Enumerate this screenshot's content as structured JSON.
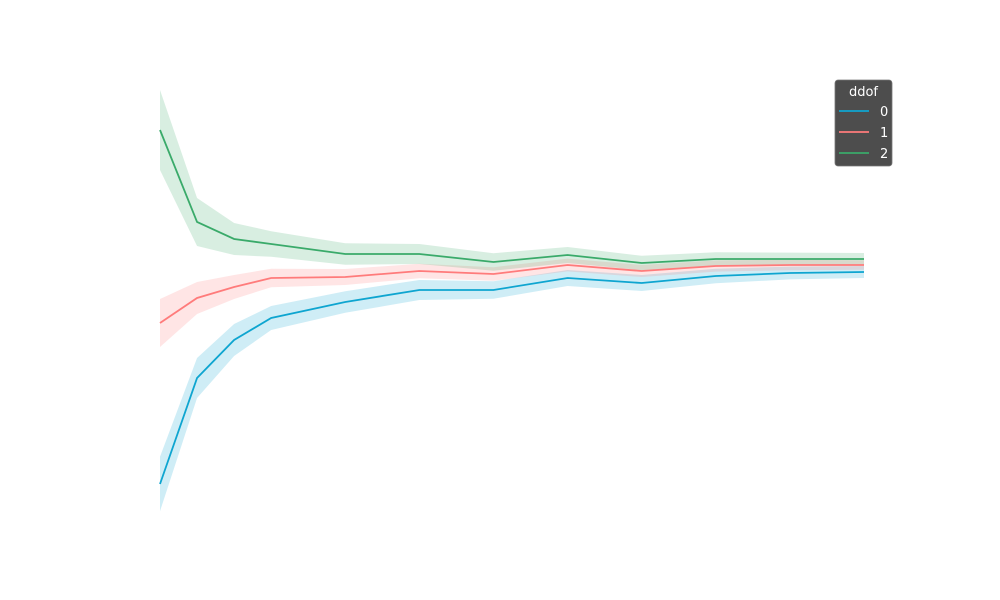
{
  "chart_data": {
    "type": "line",
    "title": "",
    "xlabel": "",
    "ylabel": "",
    "axes_visible": false,
    "grid": false,
    "x": [
      2,
      3,
      4,
      5,
      7,
      9,
      11,
      13,
      15,
      17,
      19,
      21
    ],
    "xlim": [
      2,
      21
    ],
    "ylim": [
      0.3125,
      1.5125
    ],
    "legend": {
      "title": "ddof",
      "placement": "top-right",
      "background": "#4d4d4d"
    },
    "series": [
      {
        "name": "0",
        "color": "#0ea5d0",
        "values": [
          0.4525,
          0.7175,
          0.8125,
          0.8675,
          0.9075,
          0.9375,
          0.9375,
          0.9675,
          0.955,
          0.9725,
          0.98,
          0.9825
        ],
        "ci": [
          0.068,
          0.05,
          0.04,
          0.03,
          0.027,
          0.025,
          0.022,
          0.02,
          0.02,
          0.018,
          0.016,
          0.015
        ]
      },
      {
        "name": "1",
        "color": "#ff7b7b",
        "values": [
          0.855,
          0.9175,
          0.945,
          0.9675,
          0.97,
          0.985,
          0.9775,
          1.0,
          0.985,
          0.9975,
          1.0,
          1.0
        ],
        "ci": [
          0.06,
          0.04,
          0.03,
          0.023,
          0.02,
          0.018,
          0.017,
          0.016,
          0.015,
          0.014,
          0.013,
          0.012
        ]
      },
      {
        "name": "2",
        "color": "#3aaa6a",
        "values": [
          1.3375,
          1.1075,
          1.065,
          1.0525,
          1.0275,
          1.0275,
          1.0075,
          1.025,
          1.005,
          1.015,
          1.015,
          1.015
        ],
        "ci": [
          0.1,
          0.06,
          0.04,
          0.032,
          0.027,
          0.025,
          0.022,
          0.02,
          0.018,
          0.017,
          0.016,
          0.015
        ]
      }
    ]
  }
}
